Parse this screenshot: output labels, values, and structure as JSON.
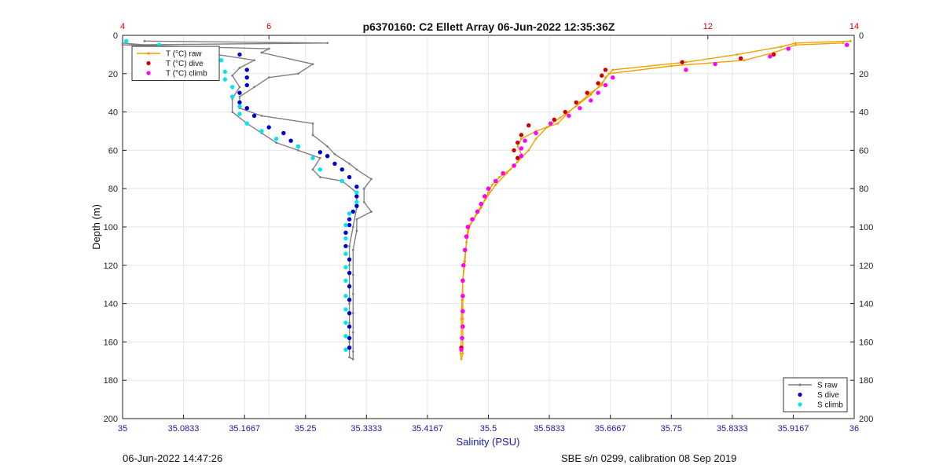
{
  "chart_data": {
    "type": "scatter",
    "title": "p6370160: C2 Ellett Array 06-Jun-2022 12:35:36Z",
    "ylabel": "Depth (m)",
    "xlabel_bottom": "Salinity (PSU)",
    "ylim": [
      0,
      200
    ],
    "y_reversed": true,
    "yticks": [
      "0",
      "20",
      "40",
      "60",
      "80",
      "100",
      "120",
      "140",
      "160",
      "180",
      "200"
    ],
    "x_bottom": {
      "range": [
        35,
        36
      ],
      "tick_values": [
        35,
        35.0833,
        35.1667,
        35.25,
        35.3333,
        35.4167,
        35.5,
        35.5833,
        35.6667,
        35.75,
        35.8333,
        35.9167,
        36
      ],
      "tick_labels": [
        "35",
        "35.0833",
        "35.1667",
        "35.25",
        "35.3333",
        "35.4167",
        "35.5",
        "35.5833",
        "35.6667",
        "35.75",
        "35.8333",
        "35.9167",
        "36"
      ],
      "color": "#1a1aa6"
    },
    "x_top": {
      "range": [
        4,
        14
      ],
      "tick_values": [
        4,
        6,
        12,
        14
      ],
      "tick_labels": [
        "4",
        "6",
        "12",
        "14"
      ],
      "color": "#d40000"
    },
    "grid": true,
    "legends": [
      {
        "placement": "top-left",
        "entries": [
          {
            "label": "T (°C) raw",
            "color": "#f0a000",
            "style": "line"
          },
          {
            "label": "T (°C) dive",
            "color": "#cc0000",
            "style": "dot"
          },
          {
            "label": "T (°C) climb",
            "color": "#ff00ff",
            "style": "dot"
          }
        ]
      },
      {
        "placement": "bottom-right",
        "entries": [
          {
            "label": "S raw",
            "color": "#808080",
            "style": "line"
          },
          {
            "label": "S dive",
            "color": "#0000cc",
            "style": "dot"
          },
          {
            "label": "S climb",
            "color": "#00e5ee",
            "style": "dot"
          }
        ]
      }
    ],
    "series": [
      {
        "name": "S raw",
        "axis": "bottom",
        "kind": "line",
        "color": "#808080",
        "points": [
          [
            35.03,
            3
          ],
          [
            35.28,
            4
          ],
          [
            35.0,
            5
          ],
          [
            35.2,
            7
          ],
          [
            35.19,
            9
          ],
          [
            35.26,
            15
          ],
          [
            35.24,
            20
          ],
          [
            35.2,
            22
          ],
          [
            35.18,
            27
          ],
          [
            35.16,
            32
          ],
          [
            35.16,
            38
          ],
          [
            35.19,
            42
          ],
          [
            35.26,
            46
          ],
          [
            35.26,
            52
          ],
          [
            35.28,
            58
          ],
          [
            35.29,
            62
          ],
          [
            35.31,
            67
          ],
          [
            35.32,
            70
          ],
          [
            35.34,
            75
          ],
          [
            35.33,
            80
          ],
          [
            35.33,
            87
          ],
          [
            35.34,
            92
          ],
          [
            35.32,
            96
          ],
          [
            35.32,
            102
          ],
          [
            35.315,
            112
          ],
          [
            35.315,
            125
          ],
          [
            35.315,
            135
          ],
          [
            35.315,
            145
          ],
          [
            35.315,
            155
          ],
          [
            35.315,
            165
          ],
          [
            35.315,
            169
          ],
          [
            35.31,
            168
          ],
          [
            35.31,
            160
          ],
          [
            35.31,
            150
          ],
          [
            35.31,
            140
          ],
          [
            35.31,
            130
          ],
          [
            35.31,
            120
          ],
          [
            35.31,
            110
          ],
          [
            35.315,
            100
          ],
          [
            35.32,
            90
          ],
          [
            35.32,
            82
          ],
          [
            35.3,
            76
          ],
          [
            35.27,
            74
          ],
          [
            35.26,
            70
          ],
          [
            35.27,
            64
          ],
          [
            35.24,
            60
          ],
          [
            35.21,
            56
          ],
          [
            35.19,
            51
          ],
          [
            35.17,
            46
          ],
          [
            35.15,
            40
          ],
          [
            35.15,
            33
          ],
          [
            35.16,
            27
          ],
          [
            35.15,
            21
          ],
          [
            35.16,
            17
          ],
          [
            35.18,
            13
          ],
          [
            35.06,
            6
          ],
          [
            35.0,
            4
          ]
        ]
      },
      {
        "name": "S dive",
        "axis": "bottom",
        "kind": "dot",
        "color": "#0000cc",
        "points": [
          [
            35.16,
            10
          ],
          [
            35.17,
            18
          ],
          [
            35.17,
            22
          ],
          [
            35.17,
            26
          ],
          [
            35.16,
            30
          ],
          [
            35.16,
            35
          ],
          [
            35.17,
            38
          ],
          [
            35.18,
            42
          ],
          [
            35.2,
            48
          ],
          [
            35.22,
            51
          ],
          [
            35.23,
            55
          ],
          [
            35.24,
            58
          ],
          [
            35.27,
            61
          ],
          [
            35.28,
            63
          ],
          [
            35.29,
            67
          ],
          [
            35.3,
            70
          ],
          [
            35.31,
            74
          ],
          [
            35.32,
            79
          ],
          [
            35.32,
            84
          ],
          [
            35.32,
            89
          ],
          [
            35.315,
            92
          ],
          [
            35.31,
            96
          ],
          [
            35.31,
            99
          ],
          [
            35.305,
            103
          ],
          [
            35.305,
            110
          ],
          [
            35.31,
            117
          ],
          [
            35.31,
            124
          ],
          [
            35.31,
            131
          ],
          [
            35.31,
            138
          ],
          [
            35.31,
            145
          ],
          [
            35.31,
            152
          ],
          [
            35.31,
            158
          ],
          [
            35.31,
            163
          ]
        ]
      },
      {
        "name": "S climb",
        "axis": "bottom",
        "kind": "dot",
        "color": "#00e5ee",
        "points": [
          [
            35.005,
            3
          ],
          [
            35.05,
            5
          ],
          [
            35.125,
            7
          ],
          [
            35.125,
            9
          ],
          [
            35.135,
            13
          ],
          [
            35.13,
            16
          ],
          [
            35.14,
            19
          ],
          [
            35.14,
            23
          ],
          [
            35.15,
            27
          ],
          [
            35.15,
            32
          ],
          [
            35.16,
            37
          ],
          [
            35.16,
            41
          ],
          [
            35.17,
            46
          ],
          [
            35.19,
            50
          ],
          [
            35.21,
            54
          ],
          [
            35.24,
            58
          ],
          [
            35.26,
            64
          ],
          [
            35.27,
            70
          ],
          [
            35.3,
            76
          ],
          [
            35.32,
            82
          ],
          [
            35.32,
            87
          ],
          [
            35.31,
            93
          ],
          [
            35.305,
            99
          ],
          [
            35.305,
            106
          ],
          [
            35.305,
            114
          ],
          [
            35.305,
            121
          ],
          [
            35.305,
            128
          ],
          [
            35.305,
            136
          ],
          [
            35.305,
            143
          ],
          [
            35.305,
            150
          ],
          [
            35.305,
            157
          ],
          [
            35.305,
            164
          ]
        ]
      },
      {
        "name": "T (°C) raw",
        "axis": "top",
        "kind": "line",
        "color": "#f0a000",
        "points": [
          [
            13.95,
            3
          ],
          [
            13.2,
            4
          ],
          [
            13.0,
            6
          ],
          [
            12.4,
            10
          ],
          [
            11.7,
            14
          ],
          [
            10.7,
            18
          ],
          [
            10.6,
            22
          ],
          [
            10.55,
            26
          ],
          [
            10.4,
            30
          ],
          [
            10.25,
            35
          ],
          [
            10.1,
            40
          ],
          [
            9.95,
            46
          ],
          [
            9.65,
            50
          ],
          [
            9.45,
            54
          ],
          [
            9.4,
            58
          ],
          [
            9.45,
            62
          ],
          [
            9.4,
            66
          ],
          [
            9.3,
            70
          ],
          [
            9.15,
            74
          ],
          [
            9.05,
            78
          ],
          [
            9.0,
            82
          ],
          [
            8.95,
            86
          ],
          [
            8.9,
            90
          ],
          [
            8.8,
            96
          ],
          [
            8.72,
            100
          ],
          [
            8.7,
            108
          ],
          [
            8.68,
            118
          ],
          [
            8.65,
            128
          ],
          [
            8.65,
            138
          ],
          [
            8.65,
            148
          ],
          [
            8.65,
            158
          ],
          [
            8.65,
            166
          ],
          [
            8.63,
            169
          ],
          [
            8.62,
            166
          ],
          [
            8.63,
            158
          ],
          [
            8.63,
            148
          ],
          [
            8.64,
            138
          ],
          [
            8.65,
            128
          ],
          [
            8.67,
            118
          ],
          [
            8.7,
            108
          ],
          [
            8.74,
            100
          ],
          [
            8.85,
            92
          ],
          [
            8.97,
            85
          ],
          [
            9.1,
            78
          ],
          [
            9.25,
            72
          ],
          [
            9.4,
            66
          ],
          [
            9.55,
            60
          ],
          [
            9.65,
            54
          ],
          [
            9.8,
            48
          ],
          [
            9.98,
            43
          ],
          [
            10.2,
            37
          ],
          [
            10.4,
            31
          ],
          [
            10.55,
            25
          ],
          [
            10.65,
            20
          ],
          [
            11.5,
            16
          ],
          [
            12.5,
            13
          ],
          [
            12.9,
            9
          ],
          [
            13.2,
            5
          ],
          [
            13.85,
            4
          ]
        ]
      },
      {
        "name": "T (°C) dive",
        "axis": "top",
        "kind": "dot",
        "color": "#cc0000",
        "points": [
          [
            12.9,
            10
          ],
          [
            12.45,
            12
          ],
          [
            11.65,
            14
          ],
          [
            10.6,
            18
          ],
          [
            10.55,
            21
          ],
          [
            10.5,
            25
          ],
          [
            10.35,
            30
          ],
          [
            10.2,
            35
          ],
          [
            10.05,
            40
          ],
          [
            9.9,
            44
          ],
          [
            9.55,
            47
          ],
          [
            9.45,
            52
          ],
          [
            9.4,
            56
          ],
          [
            9.35,
            60
          ],
          [
            9.4,
            64
          ],
          [
            9.35,
            68
          ],
          [
            9.2,
            72
          ],
          [
            9.1,
            76
          ],
          [
            9.0,
            80
          ],
          [
            8.95,
            84
          ],
          [
            8.9,
            88
          ],
          [
            8.85,
            92
          ],
          [
            8.78,
            96
          ],
          [
            8.72,
            100
          ],
          [
            8.7,
            105
          ],
          [
            8.68,
            112
          ],
          [
            8.66,
            120
          ],
          [
            8.65,
            128
          ],
          [
            8.65,
            136
          ],
          [
            8.65,
            144
          ],
          [
            8.65,
            152
          ],
          [
            8.64,
            158
          ],
          [
            8.63,
            163
          ]
        ]
      },
      {
        "name": "T (°C) climb",
        "axis": "top",
        "kind": "dot",
        "color": "#ff00ff",
        "points": [
          [
            13.9,
            5
          ],
          [
            13.1,
            7
          ],
          [
            12.85,
            11
          ],
          [
            12.1,
            15
          ],
          [
            11.7,
            18
          ],
          [
            10.7,
            22
          ],
          [
            10.6,
            26
          ],
          [
            10.5,
            30
          ],
          [
            10.4,
            34
          ],
          [
            10.25,
            38
          ],
          [
            10.1,
            42
          ],
          [
            9.85,
            46
          ],
          [
            9.65,
            51
          ],
          [
            9.5,
            55
          ],
          [
            9.45,
            59
          ],
          [
            9.45,
            63
          ],
          [
            9.35,
            68
          ],
          [
            9.2,
            72
          ],
          [
            9.1,
            76
          ],
          [
            9.0,
            80
          ],
          [
            8.95,
            84
          ],
          [
            8.9,
            88
          ],
          [
            8.85,
            92
          ],
          [
            8.78,
            96
          ],
          [
            8.72,
            100
          ],
          [
            8.7,
            105
          ],
          [
            8.68,
            112
          ],
          [
            8.66,
            120
          ],
          [
            8.65,
            128
          ],
          [
            8.65,
            136
          ],
          [
            8.65,
            144
          ],
          [
            8.65,
            152
          ],
          [
            8.64,
            158
          ],
          [
            8.63,
            164
          ]
        ]
      }
    ]
  },
  "footer": {
    "left": "06-Jun-2022 14:47:26",
    "right": "SBE s/n 0299, calibration 08 Sep 2019"
  }
}
